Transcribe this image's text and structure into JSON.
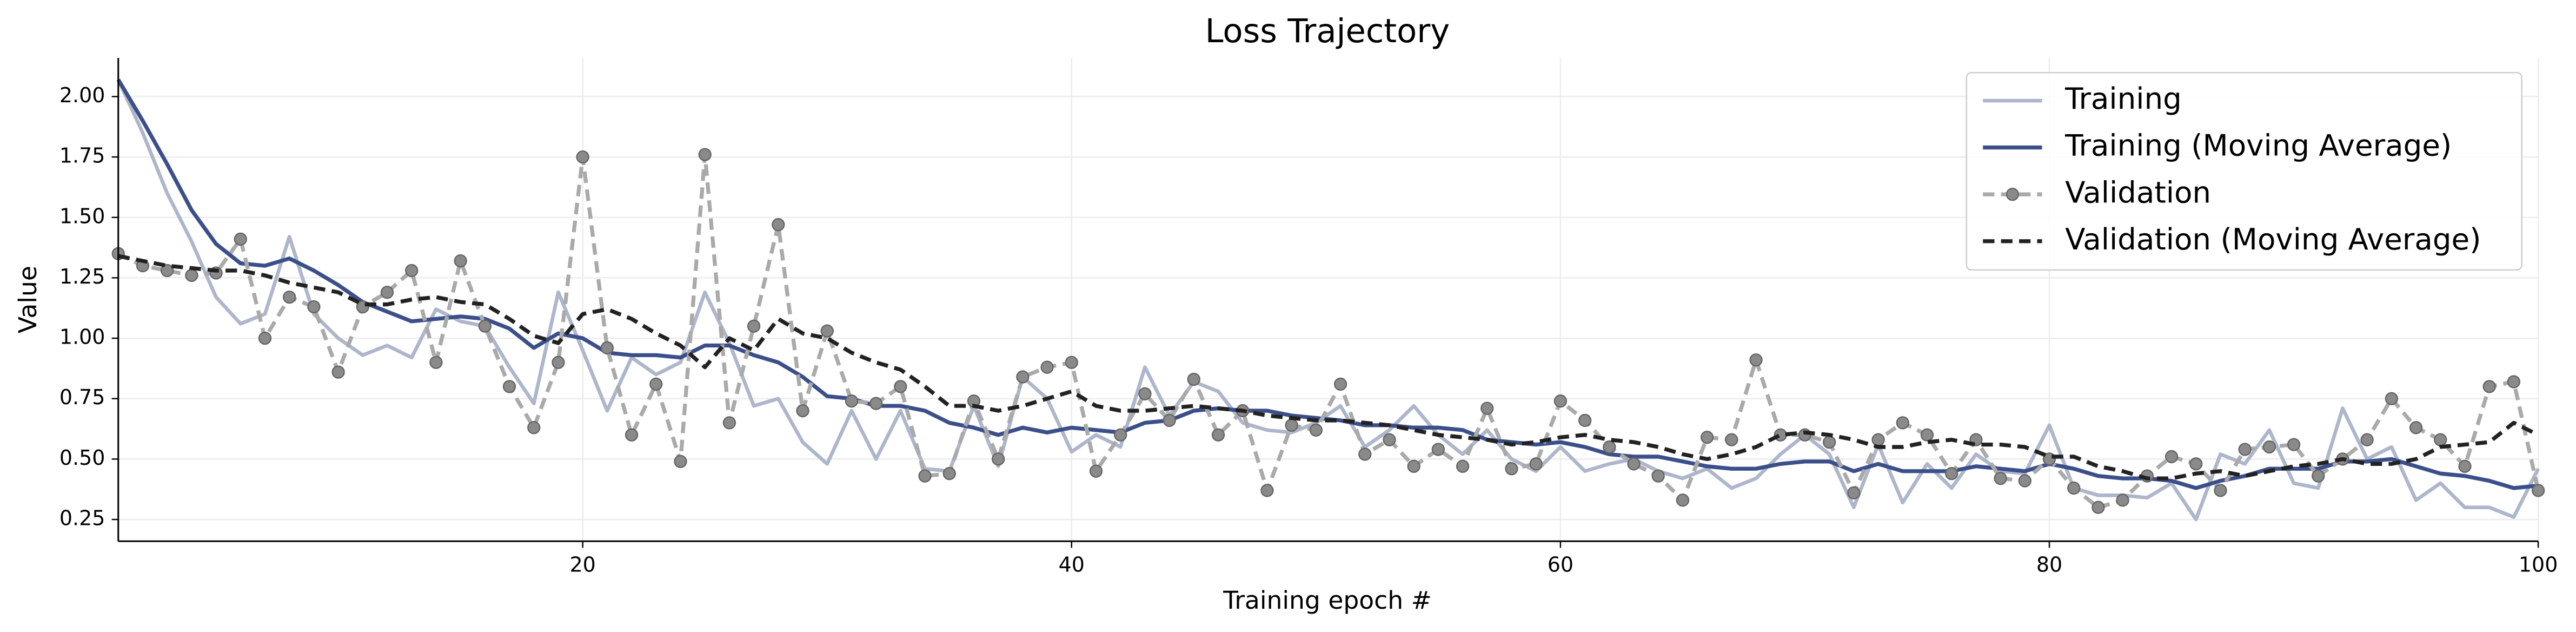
{
  "chart_data": {
    "type": "line",
    "title": "Loss Trajectory",
    "xlabel": "Training epoch #",
    "ylabel": "Value",
    "x": [
      1,
      2,
      3,
      4,
      5,
      6,
      7,
      8,
      9,
      10,
      11,
      12,
      13,
      14,
      15,
      16,
      17,
      18,
      19,
      20,
      21,
      22,
      23,
      24,
      25,
      26,
      27,
      28,
      29,
      30,
      31,
      32,
      33,
      34,
      35,
      36,
      37,
      38,
      39,
      40,
      41,
      42,
      43,
      44,
      45,
      46,
      47,
      48,
      49,
      50,
      51,
      52,
      53,
      54,
      55,
      56,
      57,
      58,
      59,
      60,
      61,
      62,
      63,
      64,
      65,
      66,
      67,
      68,
      69,
      70,
      71,
      72,
      73,
      74,
      75,
      76,
      77,
      78,
      79,
      80,
      81,
      82,
      83,
      84,
      85,
      86,
      87,
      88,
      89,
      90,
      91,
      92,
      93,
      94,
      95,
      96,
      97,
      98,
      99,
      100
    ],
    "series": [
      {
        "name": "Training",
        "color": "#aeb6cc",
        "dash": "solid",
        "width": 2.2,
        "marker": "none",
        "values": [
          2.07,
          1.85,
          1.6,
          1.4,
          1.17,
          1.06,
          1.1,
          1.42,
          1.1,
          1.0,
          0.93,
          0.97,
          0.92,
          1.12,
          1.07,
          1.05,
          0.88,
          0.73,
          1.19,
          0.95,
          0.7,
          0.92,
          0.85,
          0.9,
          1.19,
          0.98,
          0.72,
          0.75,
          0.57,
          0.48,
          0.7,
          0.5,
          0.7,
          0.46,
          0.45,
          0.72,
          0.47,
          0.84,
          0.75,
          0.53,
          0.6,
          0.55,
          0.88,
          0.68,
          0.82,
          0.78,
          0.65,
          0.62,
          0.61,
          0.65,
          0.72,
          0.55,
          0.62,
          0.72,
          0.6,
          0.52,
          0.62,
          0.5,
          0.45,
          0.55,
          0.45,
          0.48,
          0.5,
          0.45,
          0.42,
          0.46,
          0.38,
          0.42,
          0.52,
          0.6,
          0.52,
          0.3,
          0.56,
          0.32,
          0.48,
          0.38,
          0.52,
          0.45,
          0.44,
          0.64,
          0.38,
          0.35,
          0.35,
          0.34,
          0.4,
          0.25,
          0.52,
          0.48,
          0.62,
          0.4,
          0.38,
          0.71,
          0.5,
          0.55,
          0.33,
          0.4,
          0.3,
          0.3,
          0.26,
          0.46
        ]
      },
      {
        "name": "Training (Moving Average)",
        "color": "#3b4f8a",
        "dash": "solid",
        "width": 2.4,
        "marker": "none",
        "values": [
          2.07,
          1.9,
          1.72,
          1.53,
          1.39,
          1.31,
          1.3,
          1.33,
          1.28,
          1.22,
          1.15,
          1.11,
          1.07,
          1.08,
          1.09,
          1.08,
          1.04,
          0.96,
          1.02,
          1.0,
          0.94,
          0.93,
          0.93,
          0.92,
          0.97,
          0.97,
          0.93,
          0.9,
          0.84,
          0.76,
          0.75,
          0.72,
          0.72,
          0.7,
          0.65,
          0.63,
          0.6,
          0.63,
          0.61,
          0.63,
          0.62,
          0.61,
          0.65,
          0.66,
          0.7,
          0.71,
          0.7,
          0.7,
          0.68,
          0.67,
          0.66,
          0.64,
          0.64,
          0.63,
          0.63,
          0.62,
          0.58,
          0.57,
          0.56,
          0.57,
          0.55,
          0.52,
          0.51,
          0.51,
          0.49,
          0.47,
          0.46,
          0.46,
          0.48,
          0.49,
          0.49,
          0.45,
          0.48,
          0.45,
          0.45,
          0.45,
          0.47,
          0.46,
          0.45,
          0.48,
          0.46,
          0.43,
          0.42,
          0.42,
          0.41,
          0.38,
          0.41,
          0.43,
          0.46,
          0.46,
          0.46,
          0.49,
          0.49,
          0.5,
          0.47,
          0.44,
          0.43,
          0.41,
          0.38,
          0.39
        ]
      },
      {
        "name": "Validation",
        "color": "#aaaaaa",
        "dash": "dashed",
        "width": 2.4,
        "marker": "circle",
        "marker_color": "#8a8a8a",
        "values": [
          1.35,
          1.3,
          1.28,
          1.26,
          1.27,
          1.41,
          1.0,
          1.17,
          1.13,
          0.86,
          1.13,
          1.19,
          1.28,
          0.9,
          1.32,
          1.05,
          0.8,
          0.63,
          0.9,
          1.75,
          0.96,
          0.6,
          0.81,
          0.49,
          1.76,
          0.65,
          1.05,
          1.47,
          0.7,
          1.03,
          0.74,
          0.73,
          0.8,
          0.43,
          0.44,
          0.74,
          0.5,
          0.84,
          0.88,
          0.9,
          0.45,
          0.6,
          0.77,
          0.66,
          0.83,
          0.6,
          0.7,
          0.37,
          0.64,
          0.62,
          0.81,
          0.52,
          0.58,
          0.47,
          0.54,
          0.47,
          0.71,
          0.46,
          0.48,
          0.74,
          0.66,
          0.55,
          0.48,
          0.43,
          0.33,
          0.59,
          0.58,
          0.91,
          0.6,
          0.6,
          0.57,
          0.36,
          0.58,
          0.65,
          0.6,
          0.44,
          0.58,
          0.42,
          0.41,
          0.5,
          0.38,
          0.3,
          0.33,
          0.43,
          0.51,
          0.48,
          0.37,
          0.54,
          0.55,
          0.56,
          0.43,
          0.5,
          0.58,
          0.75,
          0.63,
          0.58,
          0.47,
          0.8,
          0.82,
          0.37
        ]
      },
      {
        "name": "Validation (Moving Average)",
        "color": "#222222",
        "dash": "dashed",
        "width": 2.4,
        "marker": "none",
        "values": [
          1.34,
          1.32,
          1.3,
          1.29,
          1.28,
          1.28,
          1.26,
          1.23,
          1.21,
          1.19,
          1.14,
          1.14,
          1.16,
          1.17,
          1.15,
          1.14,
          1.08,
          1.01,
          0.98,
          1.1,
          1.12,
          1.08,
          1.02,
          0.97,
          0.88,
          1.0,
          0.95,
          1.08,
          1.02,
          1.0,
          0.94,
          0.9,
          0.87,
          0.8,
          0.72,
          0.72,
          0.7,
          0.72,
          0.75,
          0.78,
          0.72,
          0.7,
          0.7,
          0.71,
          0.72,
          0.71,
          0.7,
          0.68,
          0.67,
          0.66,
          0.66,
          0.65,
          0.64,
          0.62,
          0.6,
          0.59,
          0.58,
          0.56,
          0.57,
          0.59,
          0.6,
          0.58,
          0.57,
          0.55,
          0.52,
          0.5,
          0.52,
          0.55,
          0.6,
          0.61,
          0.6,
          0.58,
          0.55,
          0.55,
          0.57,
          0.58,
          0.56,
          0.56,
          0.55,
          0.51,
          0.51,
          0.47,
          0.45,
          0.42,
          0.42,
          0.44,
          0.45,
          0.43,
          0.45,
          0.47,
          0.48,
          0.5,
          0.48,
          0.48,
          0.5,
          0.55,
          0.56,
          0.57,
          0.65,
          0.6
        ]
      }
    ],
    "xlim": [
      1,
      100
    ],
    "xticks": [
      20,
      40,
      60,
      80,
      100
    ],
    "ylim": [
      0.16,
      2.16
    ],
    "yticks": [
      0.25,
      {
        "value": 0.5,
        "label": "0.50"
      },
      0.75,
      {
        "value": 1,
        "label": "1.00"
      },
      1.25,
      {
        "value": 1.5,
        "label": "1.50"
      },
      1.75,
      {
        "value": 2,
        "label": "2.00"
      }
    ],
    "grid": true,
    "legend": "upper right"
  }
}
